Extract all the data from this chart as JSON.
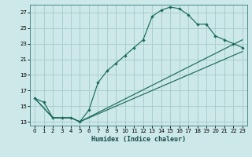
{
  "xlabel": "Humidex (Indice chaleur)",
  "bg_color": "#cce8e8",
  "grid_color": "#aacece",
  "line_color": "#1a6b5a",
  "xlim": [
    -0.5,
    23.5
  ],
  "ylim": [
    12.5,
    28.0
  ],
  "xticks": [
    0,
    1,
    2,
    3,
    4,
    5,
    6,
    7,
    8,
    9,
    10,
    11,
    12,
    13,
    14,
    15,
    16,
    17,
    18,
    19,
    20,
    21,
    22,
    23
  ],
  "yticks": [
    13,
    15,
    17,
    19,
    21,
    23,
    25,
    27
  ],
  "curve1_x": [
    0,
    1,
    2,
    3,
    4,
    5,
    6,
    7,
    8,
    9,
    10,
    11,
    12,
    13,
    14,
    15,
    16,
    17,
    18,
    19,
    20,
    21,
    22,
    23
  ],
  "curve1_y": [
    16.0,
    15.5,
    13.5,
    13.5,
    13.5,
    13.0,
    14.5,
    18.0,
    19.5,
    20.5,
    21.5,
    22.5,
    23.5,
    26.5,
    27.3,
    27.7,
    27.5,
    26.7,
    25.5,
    25.5,
    24.0,
    23.5,
    23.0,
    22.5
  ],
  "curve2_x": [
    0,
    2,
    3,
    4,
    5,
    23
  ],
  "curve2_y": [
    16.0,
    13.5,
    13.5,
    13.5,
    13.0,
    22.0
  ],
  "curve3_x": [
    0,
    2,
    3,
    4,
    5,
    23
  ],
  "curve3_y": [
    16.0,
    13.5,
    13.5,
    13.5,
    13.0,
    23.5
  ]
}
